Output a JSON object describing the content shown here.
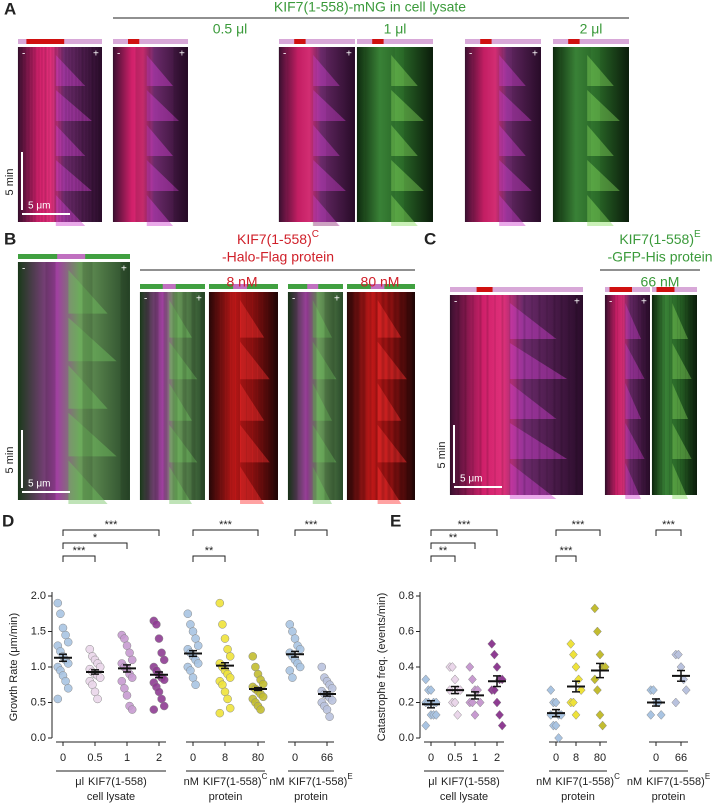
{
  "figure": {
    "panel_a": {
      "label": "A",
      "title": "KIF7(1-558)-mNG in cell lysate",
      "conditions": [
        "0.5 μl",
        "1 μl",
        "2 μl"
      ]
    },
    "panel_b": {
      "label": "B",
      "title_name": "KIF7(1-558)",
      "title_sup": "C",
      "title_line2": "-Halo-Flag protein",
      "conditions": [
        "8 nM",
        "80 nM"
      ]
    },
    "panel_c": {
      "label": "C",
      "title_name": "KIF7(1-558)",
      "title_sup": "E",
      "title_line2": "-GFP-His protein",
      "conditions": [
        "66 nM"
      ]
    },
    "minus": "-",
    "plus": "+",
    "time_scale": "5 min",
    "length_scale": "5 μm"
  },
  "chart_data": [
    {
      "type": "dot",
      "panel": "D",
      "ylabel": "Growth Rate (μm/min)",
      "marker": "circle",
      "ylim": [
        0,
        2.0
      ],
      "yticks": [
        {
          "value": 0,
          "label": "0.0"
        },
        0.5,
        {
          "value": 1,
          "label": "1.0"
        },
        1.5,
        {
          "value": 2,
          "label": "2.0"
        }
      ],
      "categories": [
        "0",
        "0.5",
        "1",
        "2",
        "0",
        "8",
        "80",
        "0",
        "66"
      ],
      "colors": [
        "#a9c4e2",
        "#ead6ea",
        "#c79ad0",
        "#8e3c92",
        "#a9c4e2",
        "#eee23a",
        "#c2bc30",
        "#a9c4e2",
        "#b9c2de"
      ],
      "group_labels": [
        {
          "unit": "μl",
          "name": "KIF7(1-558)",
          "sup": "",
          "line2": "cell lysate"
        },
        {
          "unit": "nM",
          "name": "KIF7(1-558)",
          "sup": "C",
          "line2": "protein"
        },
        {
          "unit": "nM",
          "name": "KIF7(1-558)",
          "sup": "E",
          "line2": "protein"
        }
      ],
      "means": [
        1.13,
        0.93,
        0.98,
        0.89,
        1.19,
        1.02,
        0.69,
        1.18,
        0.62
      ],
      "sems": [
        0.05,
        0.03,
        0.05,
        0.04,
        0.04,
        0.04,
        0.02,
        0.04,
        0.03
      ],
      "points": [
        [
          1.9,
          1.75,
          1.55,
          1.45,
          1.35,
          1.3,
          1.22,
          1.15,
          1.1,
          1.05,
          1.0,
          0.95,
          0.88,
          0.8,
          0.7,
          0.55
        ],
        [
          1.25,
          1.15,
          1.1,
          1.05,
          1.0,
          0.97,
          0.93,
          0.9,
          0.88,
          0.85,
          0.8,
          0.75,
          0.65,
          0.55
        ],
        [
          1.45,
          1.4,
          1.3,
          1.2,
          1.1,
          1.05,
          1.0,
          0.97,
          0.9,
          0.85,
          0.8,
          0.7,
          0.6,
          0.45,
          0.4
        ],
        [
          1.65,
          1.6,
          1.4,
          1.2,
          1.1,
          1.0,
          0.95,
          0.9,
          0.85,
          0.82,
          0.78,
          0.72,
          0.65,
          0.55,
          0.45,
          0.4
        ],
        [
          1.75,
          1.6,
          1.5,
          1.4,
          1.3,
          1.25,
          1.2,
          1.15,
          1.1,
          1.05,
          1.0,
          0.95,
          0.85,
          0.75
        ],
        [
          1.9,
          1.6,
          1.4,
          1.25,
          1.15,
          1.05,
          1.0,
          0.95,
          0.9,
          0.85,
          0.8,
          0.75,
          0.65,
          0.55,
          0.42,
          0.35
        ],
        [
          1.15,
          1.0,
          0.9,
          0.82,
          0.76,
          0.72,
          0.69,
          0.66,
          0.62,
          0.58,
          0.55,
          0.5,
          0.45,
          0.4
        ],
        [
          1.6,
          1.5,
          1.4,
          1.3,
          1.25,
          1.2,
          1.15,
          1.1,
          1.05,
          1.0,
          0.95,
          0.85
        ],
        [
          1.0,
          0.85,
          0.8,
          0.75,
          0.7,
          0.66,
          0.62,
          0.6,
          0.57,
          0.53,
          0.5,
          0.45,
          0.4,
          0.3
        ]
      ],
      "significance": [
        {
          "from": 0,
          "to": 1,
          "label": "***"
        },
        {
          "from": 0,
          "to": 2,
          "label": "*"
        },
        {
          "from": 0,
          "to": 3,
          "label": "***"
        },
        {
          "from": 4,
          "to": 5,
          "label": "**"
        },
        {
          "from": 4,
          "to": 6,
          "label": "***"
        },
        {
          "from": 7,
          "to": 8,
          "label": "***"
        }
      ]
    },
    {
      "type": "dot",
      "panel": "E",
      "ylabel": "Catastrophe freq. (events/min)",
      "marker": "diamond",
      "ylim": [
        0,
        0.8
      ],
      "yticks": [
        {
          "value": 0,
          "label": "0.0"
        },
        0.2,
        0.4,
        0.6,
        0.8
      ],
      "categories": [
        "0",
        "0.5",
        "1",
        "2",
        "0",
        "8",
        "80",
        "0",
        "66"
      ],
      "colors": [
        "#a9c4e2",
        "#ead6ea",
        "#c79ad0",
        "#8e3c92",
        "#a9c4e2",
        "#eee23a",
        "#c2bc30",
        "#a9c4e2",
        "#b9c2de"
      ],
      "group_labels": [
        {
          "unit": "μl",
          "name": "KIF7(1-558)",
          "sup": "",
          "line2": "cell lysate"
        },
        {
          "unit": "nM",
          "name": "KIF7(1-558)",
          "sup": "C",
          "line2": "protein"
        },
        {
          "unit": "nM",
          "name": "KIF7(1-558)",
          "sup": "E",
          "line2": "protein"
        }
      ],
      "means": [
        0.19,
        0.27,
        0.24,
        0.32,
        0.14,
        0.29,
        0.38,
        0.2,
        0.35
      ],
      "sems": [
        0.02,
        0.02,
        0.02,
        0.03,
        0.02,
        0.03,
        0.04,
        0.02,
        0.03
      ],
      "points": [
        [
          0.33,
          0.27,
          0.27,
          0.2,
          0.2,
          0.2,
          0.2,
          0.13,
          0.13,
          0.13,
          0.07
        ],
        [
          0.4,
          0.4,
          0.33,
          0.27,
          0.27,
          0.27,
          0.2,
          0.2,
          0.13
        ],
        [
          0.4,
          0.33,
          0.27,
          0.27,
          0.2,
          0.2,
          0.2,
          0.13
        ],
        [
          0.53,
          0.47,
          0.4,
          0.33,
          0.33,
          0.27,
          0.27,
          0.2,
          0.13,
          0.07
        ],
        [
          0.27,
          0.2,
          0.2,
          0.13,
          0.13,
          0.13,
          0.07,
          0.07,
          0
        ],
        [
          0.53,
          0.47,
          0.4,
          0.33,
          0.27,
          0.2,
          0.2,
          0.13
        ],
        [
          0.73,
          0.6,
          0.47,
          0.4,
          0.4,
          0.33,
          0.27,
          0.13,
          0.07
        ],
        [
          0.27,
          0.27,
          0.2,
          0.2,
          0.13,
          0.13
        ],
        [
          0.47,
          0.47,
          0.4,
          0.33,
          0.27,
          0.2
        ]
      ],
      "significance": [
        {
          "from": 0,
          "to": 1,
          "label": "**"
        },
        {
          "from": 0,
          "to": 2,
          "label": "**"
        },
        {
          "from": 0,
          "to": 3,
          "label": "***"
        },
        {
          "from": 4,
          "to": 5,
          "label": "***"
        },
        {
          "from": 4,
          "to": 6,
          "label": "***"
        },
        {
          "from": 7,
          "to": 8,
          "label": "***"
        }
      ]
    }
  ]
}
